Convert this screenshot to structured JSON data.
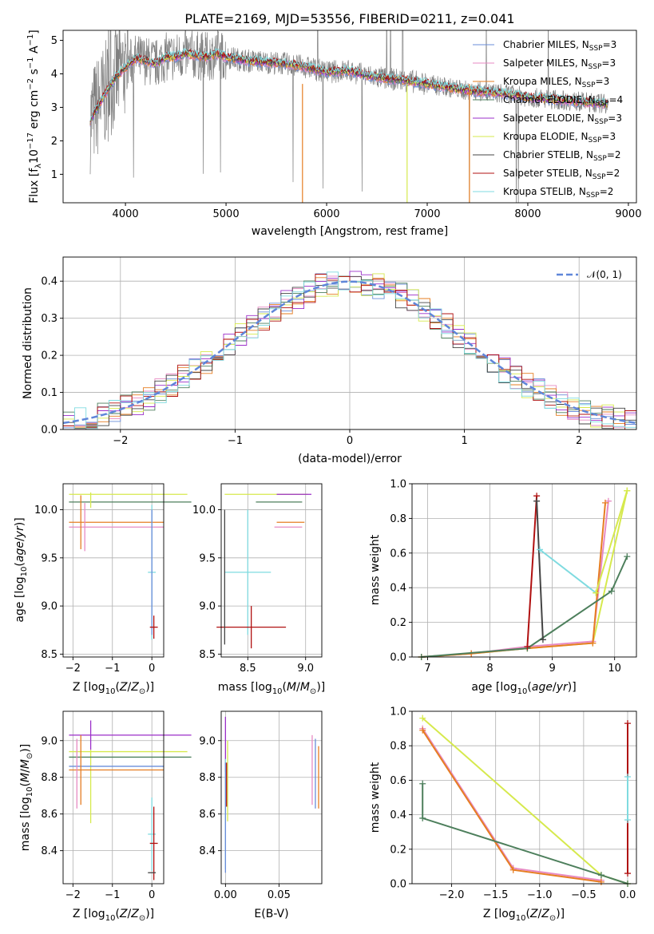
{
  "chart_data": [
    {
      "id": "spectrum",
      "type": "line",
      "title": "PLATE=2169, MJD=53556, FIBERID=0211, z=0.041",
      "xlabel": "wavelength [Angstrom, rest frame]",
      "ylabel": "Flux [f_λ 10^-17 erg cm^-2 s^-1 A^-1]",
      "ylabel_parts": {
        "a": "Flux [f",
        "b": "λ",
        "c": "10",
        "d": "−17",
        "e": " erg cm",
        "f": "−2",
        "g": " s",
        "h": "−1",
        "i": " A",
        "j": "−1",
        "k": "]"
      },
      "xlim": [
        3380,
        9080
      ],
      "ylim": [
        0.15,
        5.3
      ],
      "xticks": [
        "4000",
        "5000",
        "6000",
        "7000",
        "8000",
        "9000"
      ],
      "yticks": [
        "1",
        "2",
        "3",
        "4",
        "5"
      ],
      "data_color": "#808080",
      "model_wavelength": [
        3650,
        3700,
        3800,
        3900,
        4000,
        4100,
        4200,
        4300,
        4400,
        4500,
        4600,
        4700,
        4800,
        4900,
        5000,
        5200,
        5400,
        5600,
        5800,
        6000,
        6200,
        6400,
        6600,
        6800,
        7000,
        7200,
        7400,
        7600,
        7800,
        8000,
        8200,
        8400,
        8600,
        8800
      ],
      "model_flux": [
        2.6,
        2.9,
        3.4,
        3.9,
        4.2,
        4.45,
        4.4,
        4.3,
        4.5,
        4.5,
        4.6,
        4.55,
        4.5,
        4.6,
        4.5,
        4.4,
        4.35,
        4.3,
        4.2,
        4.05,
        4.1,
        3.95,
        3.85,
        3.8,
        3.7,
        3.6,
        3.5,
        3.45,
        3.4,
        3.3,
        3.25,
        3.2,
        3.15,
        3.1
      ],
      "legend": [
        {
          "model": "Chabrier MILES",
          "nssp": "3",
          "color": "#6a8dd9"
        },
        {
          "model": "Salpeter MILES",
          "nssp": "3",
          "color": "#e78ac3"
        },
        {
          "model": "Kroupa MILES",
          "nssp": "3",
          "color": "#e67e22"
        },
        {
          "model": "Chabrier ELODIE",
          "nssp": "4",
          "color": "#4d7f5c"
        },
        {
          "model": "Salpeter ELODIE",
          "nssp": "3",
          "color": "#9b2fc9"
        },
        {
          "model": "Kroupa ELODIE",
          "nssp": "3",
          "color": "#d6e94d"
        },
        {
          "model": "Chabrier STELIB",
          "nssp": "2",
          "color": "#444444"
        },
        {
          "model": "Salpeter STELIB",
          "nssp": "2",
          "color": "#b01010"
        },
        {
          "model": "Kroupa STELIB",
          "nssp": "2",
          "color": "#7fdbe0"
        }
      ],
      "legend_nssp_prefix": "N",
      "legend_nssp_sub": "SSP",
      "legend_placement": "right"
    },
    {
      "id": "residuals",
      "type": "histogram",
      "xlabel": "(data-model)/error",
      "ylabel": "Normed distribution",
      "xlim": [
        -2.5,
        2.5
      ],
      "ylim": [
        0,
        0.465
      ],
      "xticks": [
        -2,
        -1,
        0,
        1,
        2
      ],
      "xtick_labels": [
        "−2",
        "−1",
        "0",
        "1",
        "2"
      ],
      "yticks": [
        0.0,
        0.1,
        0.2,
        0.3,
        0.4
      ],
      "ytick_labels": [
        "0.0",
        "0.1",
        "0.2",
        "0.3",
        "0.4"
      ],
      "grid": true,
      "bin_width": 0.1,
      "reference_curve": {
        "label": "𝒩(0, 1)",
        "color": "#5f86d9",
        "style": "dashed"
      },
      "legend_placement": "top-right"
    },
    {
      "id": "age-vs-z",
      "type": "errorbar",
      "xlabel": "Z [log10(Z/Z⊙)]",
      "ylabel": "age [log10(age/yr)]",
      "xlim": [
        -2.25,
        0.3
      ],
      "ylim": [
        8.47,
        10.27
      ],
      "xticks": [
        -2,
        -1,
        0
      ],
      "xtick_labels": [
        "−2",
        "−1",
        "0"
      ],
      "yticks": [
        8.5,
        9.0,
        9.5,
        10.0
      ],
      "ytick_labels": [
        "8.5",
        "9.0",
        "9.5",
        "10.0"
      ],
      "points": [
        {
          "x": -0.6,
          "y": 10.16,
          "xerr": 1.5,
          "yerr": 0.0,
          "color": "#d6e94d"
        },
        {
          "x": -0.55,
          "y": 10.08,
          "xerr": 1.55,
          "yerr": 0.0,
          "color": "#4d7f5c"
        },
        {
          "x": -1.55,
          "y": 10.1,
          "xerr": 0.0,
          "yerr": 0.08,
          "color": "#d6e94d"
        },
        {
          "x": -0.9,
          "y": 9.87,
          "xerr": 1.2,
          "yerr": 0.0,
          "color": "#e67e22"
        },
        {
          "x": -0.9,
          "y": 9.82,
          "xerr": 1.2,
          "yerr": 0.0,
          "color": "#e78ac3"
        },
        {
          "x": -1.8,
          "y": 9.87,
          "xerr": 0.0,
          "yerr": 0.28,
          "color": "#e67e22"
        },
        {
          "x": -1.7,
          "y": 9.82,
          "xerr": 0.0,
          "yerr": 0.25,
          "color": "#e78ac3"
        },
        {
          "x": 0.0,
          "y": 9.35,
          "xerr": 0.1,
          "yerr": 0.7,
          "color": "#7fdbe0"
        },
        {
          "x": 0.0,
          "y": 9.35,
          "xerr": 0.0,
          "yerr": 0.65,
          "color": "#6a8dd9"
        },
        {
          "x": 0.05,
          "y": 8.78,
          "xerr": 0.1,
          "yerr": 0.12,
          "color": "#b01010"
        }
      ]
    },
    {
      "id": "age-vs-mass",
      "type": "errorbar",
      "xlabel": "mass [log10(M/M⊙)]",
      "xlim": [
        8.27,
        9.14
      ],
      "ylim": [
        8.47,
        10.27
      ],
      "xticks": [
        8.5,
        9.0
      ],
      "xtick_labels": [
        "8.5",
        "9.0"
      ],
      "yticks": [
        8.5,
        9.0,
        9.5,
        10.0
      ],
      "ytick_labels": [
        "8.5",
        "9.0",
        "9.5",
        "10.0"
      ],
      "points": [
        {
          "x": 8.66,
          "y": 10.16,
          "xerr": 0.36,
          "yerr": 0.0,
          "color": "#d6e94d"
        },
        {
          "x": 8.9,
          "y": 10.16,
          "xerr": 0.15,
          "yerr": 0.0,
          "color": "#9b2fc9"
        },
        {
          "x": 8.77,
          "y": 10.08,
          "xerr": 0.2,
          "yerr": 0.0,
          "color": "#4d7f5c"
        },
        {
          "x": 8.87,
          "y": 9.87,
          "xerr": 0.12,
          "yerr": 0.0,
          "color": "#e67e22"
        },
        {
          "x": 8.85,
          "y": 9.82,
          "xerr": 0.12,
          "yerr": 0.0,
          "color": "#e78ac3"
        },
        {
          "x": 8.5,
          "y": 9.35,
          "xerr": 0.2,
          "yerr": 0.65,
          "color": "#7fdbe0"
        },
        {
          "x": 8.53,
          "y": 8.78,
          "xerr": 0.3,
          "yerr": 0.22,
          "color": "#b01010"
        },
        {
          "x": 8.3,
          "y": 9.3,
          "xerr": 0.0,
          "yerr": 0.7,
          "color": "#444444"
        }
      ]
    },
    {
      "id": "mass-weight-vs-age",
      "type": "line",
      "xlabel": "age [log10(age/yr)]",
      "ylabel": "mass weight",
      "xlim": [
        6.75,
        10.35
      ],
      "ylim": [
        0,
        1.0
      ],
      "xticks": [
        7,
        8,
        9,
        10
      ],
      "xtick_labels": [
        "7",
        "8",
        "9",
        "10"
      ],
      "yticks": [
        0.0,
        0.2,
        0.4,
        0.6,
        0.8,
        1.0
      ],
      "ytick_labels": [
        "0.0",
        "0.2",
        "0.4",
        "0.6",
        "0.8",
        "1.0"
      ],
      "series": [
        {
          "color": "#d6e94d",
          "x": [
            6.9,
            7.7,
            8.6,
            9.65,
            10.2
          ],
          "y": [
            0.0,
            0.02,
            0.05,
            0.08,
            0.96
          ]
        },
        {
          "color": "#e78ac3",
          "x": [
            6.9,
            7.7,
            8.6,
            9.65,
            9.9
          ],
          "y": [
            0.0,
            0.02,
            0.06,
            0.09,
            0.9
          ]
        },
        {
          "color": "#e67e22",
          "x": [
            6.9,
            7.7,
            8.6,
            9.65,
            9.85
          ],
          "y": [
            0.0,
            0.02,
            0.05,
            0.08,
            0.89
          ]
        },
        {
          "color": "#4d7f5c",
          "x": [
            6.9,
            8.6,
            9.95,
            10.2
          ],
          "y": [
            0.0,
            0.05,
            0.38,
            0.58
          ]
        },
        {
          "color": "#b01010",
          "x": [
            8.6,
            8.75
          ],
          "y": [
            0.06,
            0.93
          ]
        },
        {
          "color": "#444444",
          "x": [
            8.75,
            8.85
          ],
          "y": [
            0.9,
            0.1
          ]
        },
        {
          "color": "#7fdbe0",
          "x": [
            8.8,
            9.7
          ],
          "y": [
            0.62,
            0.37
          ]
        },
        {
          "color": "#d6e94d",
          "x": [
            9.7,
            10.2
          ],
          "y": [
            0.37,
            0.96
          ]
        }
      ]
    },
    {
      "id": "mass-vs-z",
      "type": "errorbar",
      "xlabel": "Z [log10(Z/Z⊙)]",
      "ylabel": "mass [log10(M/M⊙)]",
      "xlim": [
        -2.25,
        0.3
      ],
      "ylim": [
        8.22,
        9.16
      ],
      "xticks": [
        -2,
        -1,
        0
      ],
      "xtick_labels": [
        "−2",
        "−1",
        "0"
      ],
      "yticks": [
        8.4,
        8.6,
        8.8,
        9.0
      ],
      "ytick_labels": [
        "8.4",
        "8.6",
        "8.8",
        "9.0"
      ],
      "points": [
        {
          "x": -0.55,
          "y": 9.03,
          "xerr": 1.55,
          "yerr": 0.0,
          "color": "#9b2fc9"
        },
        {
          "x": -1.55,
          "y": 9.03,
          "xerr": 0.0,
          "yerr": 0.08,
          "color": "#9b2fc9"
        },
        {
          "x": -0.6,
          "y": 8.94,
          "xerr": 1.5,
          "yerr": 0.0,
          "color": "#d6e94d"
        },
        {
          "x": -1.55,
          "y": 8.75,
          "xerr": 0.0,
          "yerr": 0.2,
          "color": "#d6e94d"
        },
        {
          "x": -0.55,
          "y": 8.91,
          "xerr": 1.55,
          "yerr": 0.0,
          "color": "#4d7f5c"
        },
        {
          "x": -0.9,
          "y": 8.86,
          "xerr": 1.2,
          "yerr": 0.0,
          "color": "#6a8dd9"
        },
        {
          "x": -0.9,
          "y": 8.84,
          "xerr": 1.2,
          "yerr": 0.0,
          "color": "#e67e22"
        },
        {
          "x": -1.8,
          "y": 8.84,
          "xerr": 0.0,
          "yerr": 0.19,
          "color": "#e67e22"
        },
        {
          "x": -1.9,
          "y": 8.82,
          "xerr": 0.0,
          "yerr": 0.19,
          "color": "#e78ac3"
        },
        {
          "x": 0.0,
          "y": 8.49,
          "xerr": 0.1,
          "yerr": 0.2,
          "color": "#7fdbe0"
        },
        {
          "x": 0.05,
          "y": 8.44,
          "xerr": 0.1,
          "yerr": 0.2,
          "color": "#b01010"
        },
        {
          "x": 0.0,
          "y": 8.28,
          "xerr": 0.1,
          "yerr": 0.0,
          "color": "#444444"
        }
      ]
    },
    {
      "id": "mass-vs-ebv",
      "type": "errorbar",
      "xlabel": "E(B-V)",
      "xlim": [
        -0.004,
        0.09
      ],
      "ylim": [
        8.22,
        9.16
      ],
      "xticks": [
        0.0,
        0.05
      ],
      "xtick_labels": [
        "0.00",
        "0.05"
      ],
      "yticks": [
        8.4,
        8.6,
        8.8,
        9.0
      ],
      "ytick_labels": [
        "8.4",
        "8.6",
        "8.8",
        "9.0"
      ],
      "points": [
        {
          "x": 0.0,
          "y": 8.98,
          "xerr": 0.0,
          "yerr": 0.15,
          "color": "#9b2fc9"
        },
        {
          "x": 0.002,
          "y": 8.78,
          "xerr": 0.0,
          "yerr": 0.22,
          "color": "#d6e94d"
        },
        {
          "x": 0.001,
          "y": 8.76,
          "xerr": 0.0,
          "yerr": 0.12,
          "color": "#b01010"
        },
        {
          "x": 0.0,
          "y": 8.6,
          "xerr": 0.0,
          "yerr": 0.3,
          "color": "#7fdbe0"
        },
        {
          "x": 0.0,
          "y": 8.58,
          "xerr": 0.0,
          "yerr": 0.3,
          "color": "#6a8dd9"
        },
        {
          "x": 0.081,
          "y": 8.84,
          "xerr": 0.0,
          "yerr": 0.19,
          "color": "#e78ac3"
        },
        {
          "x": 0.084,
          "y": 8.82,
          "xerr": 0.0,
          "yerr": 0.19,
          "color": "#6a8dd9"
        },
        {
          "x": 0.087,
          "y": 8.8,
          "xerr": 0.0,
          "yerr": 0.17,
          "color": "#e67e22"
        }
      ]
    },
    {
      "id": "mass-weight-vs-z",
      "type": "line",
      "xlabel": "Z [log10(Z/Z⊙)]",
      "ylabel": "mass weight",
      "xlim": [
        -2.45,
        0.1
      ],
      "ylim": [
        0,
        1.0
      ],
      "xticks": [
        -2.0,
        -1.5,
        -1.0,
        -0.5,
        0.0
      ],
      "xtick_labels": [
        "−2.0",
        "−1.5",
        "−1.0",
        "−0.5",
        "0.0"
      ],
      "yticks": [
        0.0,
        0.2,
        0.4,
        0.6,
        0.8,
        1.0
      ],
      "ytick_labels": [
        "0.0",
        "0.2",
        "0.4",
        "0.6",
        "0.8",
        "1.0"
      ],
      "series": [
        {
          "color": "#d6e94d",
          "x": [
            -2.33,
            -0.3,
            0.0
          ],
          "y": [
            0.96,
            0.05,
            0.0
          ]
        },
        {
          "color": "#e78ac3",
          "x": [
            -2.33,
            -1.3,
            -0.3
          ],
          "y": [
            0.9,
            0.09,
            0.02
          ]
        },
        {
          "color": "#e67e22",
          "x": [
            -2.33,
            -1.3,
            -0.3
          ],
          "y": [
            0.89,
            0.08,
            0.01
          ]
        },
        {
          "color": "#4d7f5c",
          "x": [
            -2.33,
            -2.33,
            -0.3,
            0.0
          ],
          "y": [
            0.58,
            0.38,
            0.05,
            0.0
          ]
        },
        {
          "color": "#b01010",
          "x": [
            0.0,
            0.0
          ],
          "y": [
            0.06,
            0.93
          ]
        },
        {
          "color": "#7fdbe0",
          "x": [
            0.0,
            0.0
          ],
          "y": [
            0.37,
            0.62
          ]
        }
      ]
    }
  ]
}
